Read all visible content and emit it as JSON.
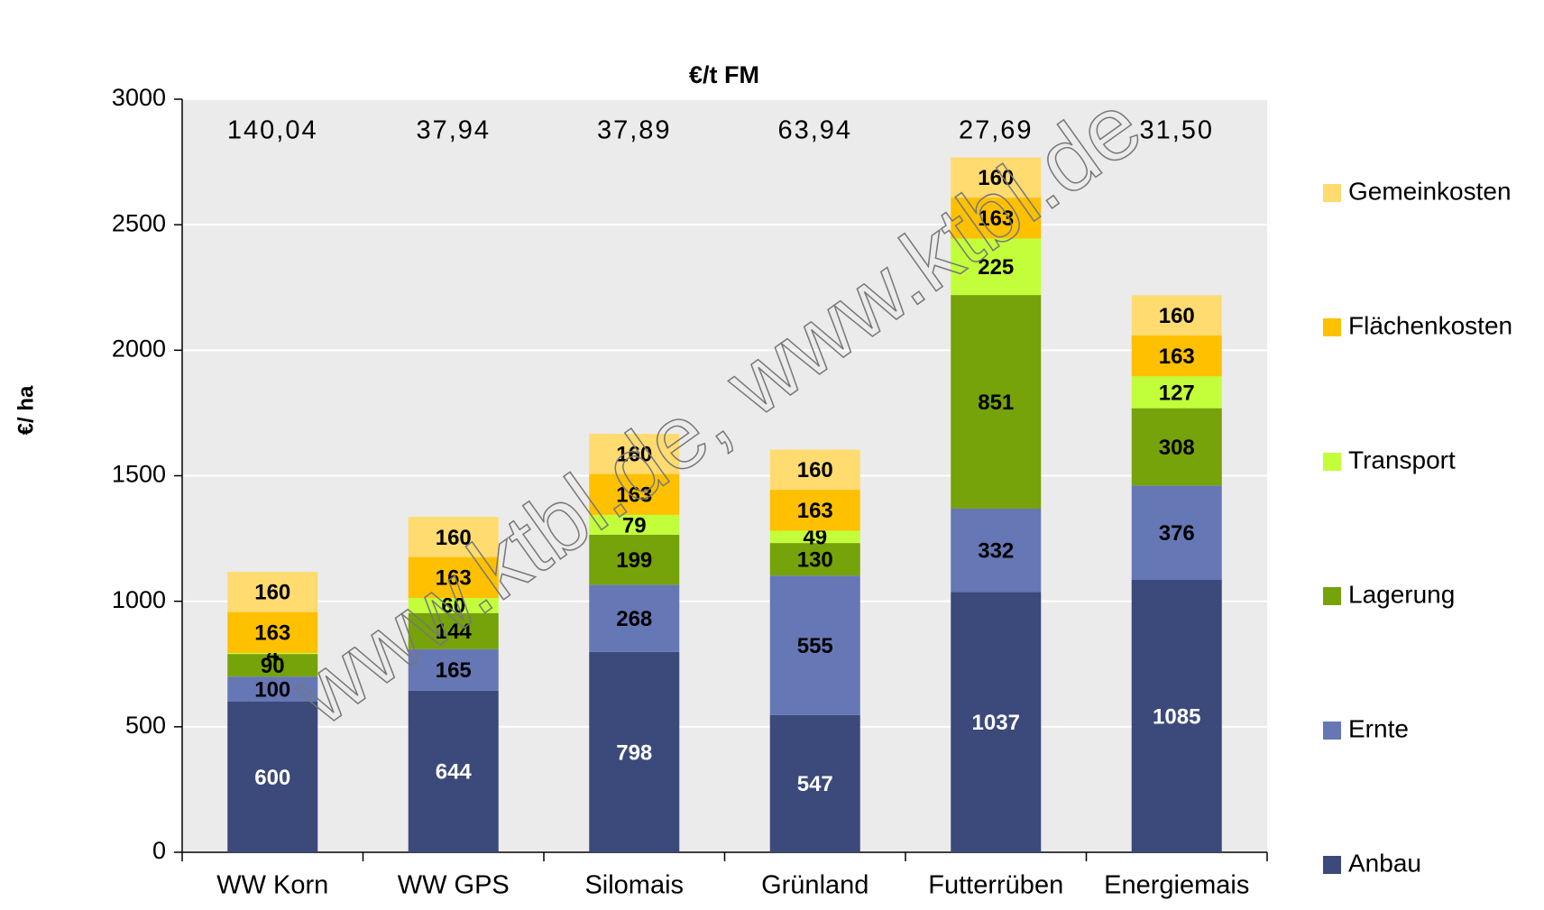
{
  "chart_data": {
    "type": "bar",
    "stacked": true,
    "title": "€/t FM",
    "y_label": "€/ ha",
    "categories": [
      "WW Korn",
      "WW GPS",
      "Silomais",
      "Grünland",
      "Futterrüben",
      "Energiemais"
    ],
    "annotations": [
      "140,04",
      "37,94",
      "37,89",
      "63,94",
      "27,69",
      "31,50"
    ],
    "series": [
      {
        "name": "Anbau",
        "color": "#3b4a7a",
        "values": [
          600,
          644,
          798,
          547,
          1037,
          1085
        ]
      },
      {
        "name": "Ernte",
        "color": "#6677b5",
        "values": [
          100,
          165,
          268,
          555,
          332,
          376
        ]
      },
      {
        "name": "Lagerung",
        "color": "#76a20a",
        "values": [
          90,
          144,
          199,
          130,
          851,
          308
        ]
      },
      {
        "name": "Transport",
        "color": "#c2ff3a",
        "values": [
          4,
          60,
          79,
          49,
          225,
          127
        ]
      },
      {
        "name": "Flächenkosten",
        "color": "#ffc000",
        "values": [
          163,
          163,
          163,
          163,
          163,
          163
        ]
      },
      {
        "name": "Gemeinkosten",
        "color": "#ffdb70",
        "values": [
          160,
          160,
          160,
          160,
          160,
          160
        ]
      }
    ],
    "ylim": [
      0,
      3000
    ],
    "yticks": [
      0,
      500,
      1000,
      1500,
      2000,
      2500,
      3000
    ],
    "grid": true,
    "legend": "right",
    "watermark": "www.ktbl.de, www.ktbl.de"
  }
}
